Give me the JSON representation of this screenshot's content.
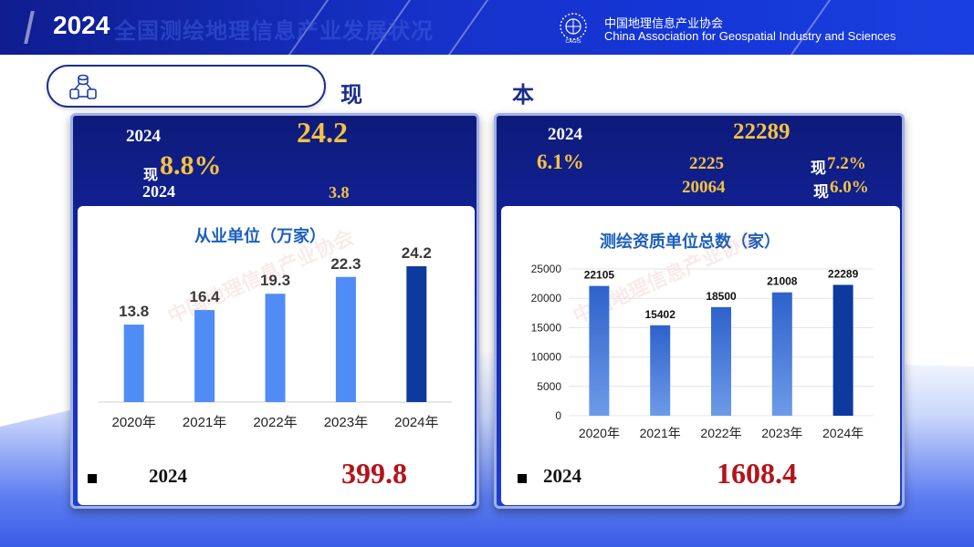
{
  "header": {
    "year": "2024",
    "title": "全国测绘地理信息产业发展状况",
    "association_cn": "中国地理信息产业协会",
    "association_en": "China Association for Geospatial Industry and Sciences",
    "logo_caption": "CAGIS"
  },
  "section": {
    "char1": "现",
    "char2": "本"
  },
  "left_panel": {
    "year_a": "2024",
    "big_value": "24.2",
    "growth_prefix": "现",
    "growth": "8.8%",
    "year_b": "2024",
    "sub_value": "3.8",
    "watermark": "中国地理信息产业协会",
    "bottom_year": "2024",
    "bottom_value": "399.8"
  },
  "right_panel": {
    "year_a": "2024",
    "big_value": "22289",
    "growth": "6.1%",
    "val_a": "2225",
    "pct_a_prefix": "现",
    "pct_a": "7.2%",
    "val_b": "20064",
    "pct_b_prefix": "现",
    "pct_b": "6.0%",
    "watermark": "中国地理信息产业协会",
    "bottom_year": "2024",
    "bottom_value": "1608.4"
  },
  "colors": {
    "header_blue": "#1632c9",
    "panel_blue": "#1427a6",
    "gold": "#f5c242",
    "dark_red": "#b3141b",
    "bar_light": "#4f8cf5",
    "bar_dark": "#0c3a9e",
    "title_blue": "#1c5fbd"
  },
  "chart_data": [
    {
      "type": "bar",
      "title": "从业单位（万家）",
      "categories": [
        "2020年",
        "2021年",
        "2022年",
        "2023年",
        "2024年"
      ],
      "values": [
        13.8,
        16.4,
        19.3,
        22.3,
        24.2
      ],
      "data_labels": [
        "13.8",
        "16.4",
        "19.3",
        "22.3",
        "24.2"
      ],
      "ylim": [
        0,
        26
      ],
      "y_axis_shown": false,
      "highlight_last": true
    },
    {
      "type": "bar",
      "title": "测绘资质单位总数（家）",
      "categories": [
        "2020年",
        "2021年",
        "2022年",
        "2023年",
        "2024年"
      ],
      "values": [
        22105,
        15402,
        18500,
        21008,
        22289
      ],
      "data_labels": [
        "22105",
        "15402",
        "18500",
        "21008",
        "22289"
      ],
      "ylim": [
        0,
        25000
      ],
      "yticks": [
        "0",
        "5000",
        "10000",
        "15000",
        "20000",
        "25000"
      ],
      "grid": true,
      "highlight_last": true
    }
  ]
}
